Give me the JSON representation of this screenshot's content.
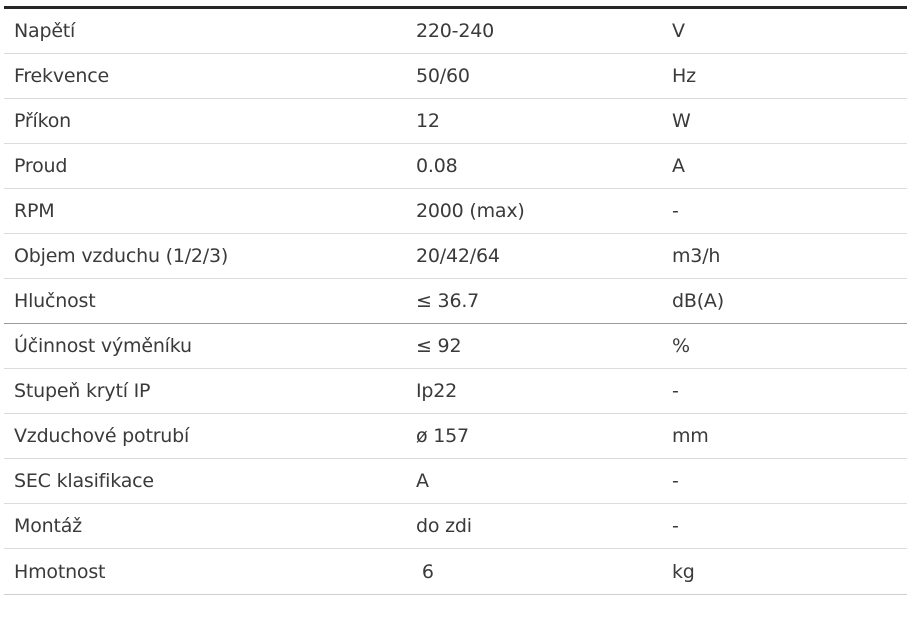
{
  "spec_table": {
    "rows": [
      {
        "parameter": "Napětí",
        "value": "220-240",
        "unit": "V"
      },
      {
        "parameter": "Frekvence",
        "value": "50/60",
        "unit": "Hz"
      },
      {
        "parameter": "Příkon",
        "value": "12",
        "unit": "W"
      },
      {
        "parameter": "Proud",
        "value": "0.08",
        "unit": "A"
      },
      {
        "parameter": "RPM",
        "value": "2000 (max)",
        "unit": "-"
      },
      {
        "parameter": "Objem vzduchu (1/2/3)",
        "value": "20/42/64",
        "unit": "m3/h"
      },
      {
        "parameter": "Hlučnost",
        "value": "≤ 36.7",
        "unit": "dB(A)"
      },
      {
        "parameter": "Účinnost výměníku",
        "value": "≤ 92",
        "unit": "%"
      },
      {
        "parameter": "Stupeň krytí IP",
        "value": "Ip22",
        "unit": "-"
      },
      {
        "parameter": "Vzduchové potrubí",
        "value": "ø 157",
        "unit": "mm"
      },
      {
        "parameter": "SEC klasifikace",
        "value": "A",
        "unit": "-"
      },
      {
        "parameter": "Montáž",
        "value": "do zdi",
        "unit": "-"
      },
      {
        "parameter": "Hmotnost",
        "value": " 6",
        "unit": "kg"
      }
    ]
  }
}
